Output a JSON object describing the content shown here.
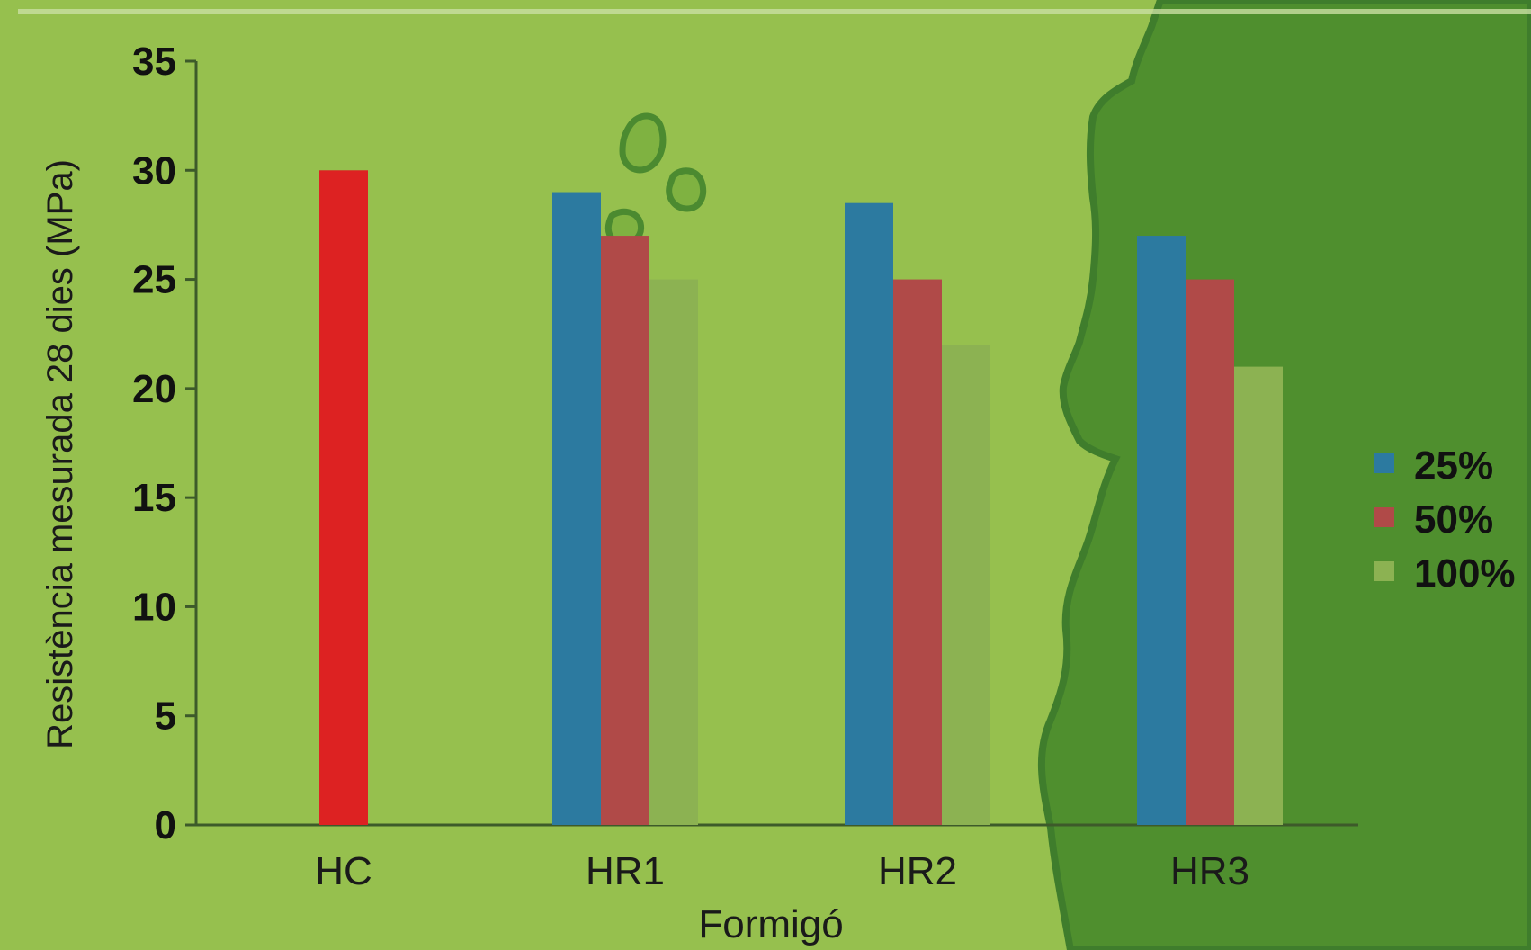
{
  "colors": {
    "background": "#96c04e",
    "map_land": "#4f8f2e",
    "map_coast": "#3f7d2c",
    "axis": "#3d5a2a",
    "text": "#1a1a1a"
  },
  "chart_data": {
    "type": "bar",
    "title": "",
    "xlabel": "Formigó",
    "ylabel": "Resistència mesurada 28 dies (MPa)",
    "ylim": [
      0,
      35
    ],
    "yticks": [
      0,
      5,
      10,
      15,
      20,
      25,
      30,
      35
    ],
    "categories": [
      "HC",
      "HR1",
      "HR2",
      "HR3"
    ],
    "control": {
      "category": "HC",
      "value": 30,
      "color": "#dd2222"
    },
    "series": [
      {
        "name": "25%",
        "color": "#2c7aa0",
        "values": [
          null,
          29,
          28.5,
          27
        ]
      },
      {
        "name": "50%",
        "color": "#b04a48",
        "values": [
          null,
          27,
          25,
          25
        ]
      },
      {
        "name": "100%",
        "color": "#8cb252",
        "values": [
          null,
          25,
          22,
          21
        ]
      }
    ],
    "legend": {
      "position": "right"
    },
    "grid": false
  }
}
